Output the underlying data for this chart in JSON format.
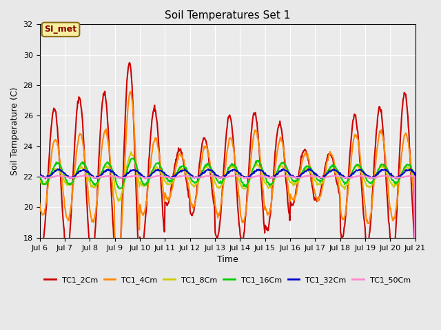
{
  "title": "Soil Temperatures Set 1",
  "xlabel": "Time",
  "ylabel": "Soil Temperature (C)",
  "ylim": [
    18,
    32
  ],
  "annotation_text": "SI_met",
  "xtick_labels": [
    "Jul 6",
    "Jul 7",
    "Jul 8",
    "Jul 9",
    "Jul 10",
    "Jul 11",
    "Jul 12",
    "Jul 13",
    "Jul 14",
    "Jul 15",
    "Jul 16",
    "Jul 17",
    "Jul 18",
    "Jul 19",
    "Jul 20",
    "Jul 21"
  ],
  "ytick_labels": [
    18,
    20,
    22,
    24,
    26,
    28,
    30,
    32
  ],
  "background_color": "#e8e8e8",
  "plot_bg_color": "#ebebeb",
  "series_colors": [
    "#cc0000",
    "#ff8800",
    "#cccc00",
    "#00cc00",
    "#0000cc",
    "#ff88cc"
  ],
  "series_labels": [
    "TC1_2Cm",
    "TC1_4Cm",
    "TC1_8Cm",
    "TC1_16Cm",
    "TC1_32Cm",
    "TC1_50Cm"
  ],
  "points_per_day": 48,
  "num_days": 15,
  "tc2_amp": [
    4.5,
    5.2,
    5.5,
    7.5,
    4.5,
    1.8,
    2.5,
    4.0,
    4.2,
    3.5,
    1.8,
    1.5,
    4.0,
    4.5,
    5.5
  ],
  "tc4_amp": [
    2.5,
    2.8,
    3.0,
    5.5,
    2.5,
    1.5,
    2.0,
    2.5,
    3.0,
    2.5,
    1.5,
    1.5,
    2.8,
    3.0,
    2.8
  ],
  "tc8_amp": [
    0.5,
    0.6,
    0.7,
    1.5,
    0.6,
    0.5,
    0.6,
    0.7,
    0.8,
    0.7,
    0.5,
    0.5,
    0.7,
    0.7,
    0.6
  ],
  "tc16_amp": [
    0.7,
    0.7,
    0.7,
    1.0,
    0.7,
    0.5,
    0.6,
    0.6,
    0.8,
    0.7,
    0.5,
    0.5,
    0.6,
    0.6,
    0.6
  ],
  "tc32_amp": [
    0.25,
    0.25,
    0.25,
    0.25,
    0.25,
    0.25,
    0.25,
    0.25,
    0.25,
    0.25,
    0.25,
    0.25,
    0.25,
    0.25,
    0.25
  ],
  "tc50_amp": [
    0.06,
    0.06,
    0.06,
    0.06,
    0.06,
    0.06,
    0.06,
    0.06,
    0.06,
    0.06,
    0.06,
    0.06,
    0.06,
    0.06,
    0.06
  ],
  "tc2_base": 22.0,
  "tc4_base": 22.0,
  "tc8_base": 22.0,
  "tc16_base": 22.2,
  "tc32_base": 22.2,
  "tc50_base": 22.0,
  "phase_shift_2": 14,
  "phase_shift_4": 15,
  "phase_shift_8": 16,
  "phase_shift_16": 17,
  "phase_shift_32": 18,
  "phase_shift_50": 19
}
